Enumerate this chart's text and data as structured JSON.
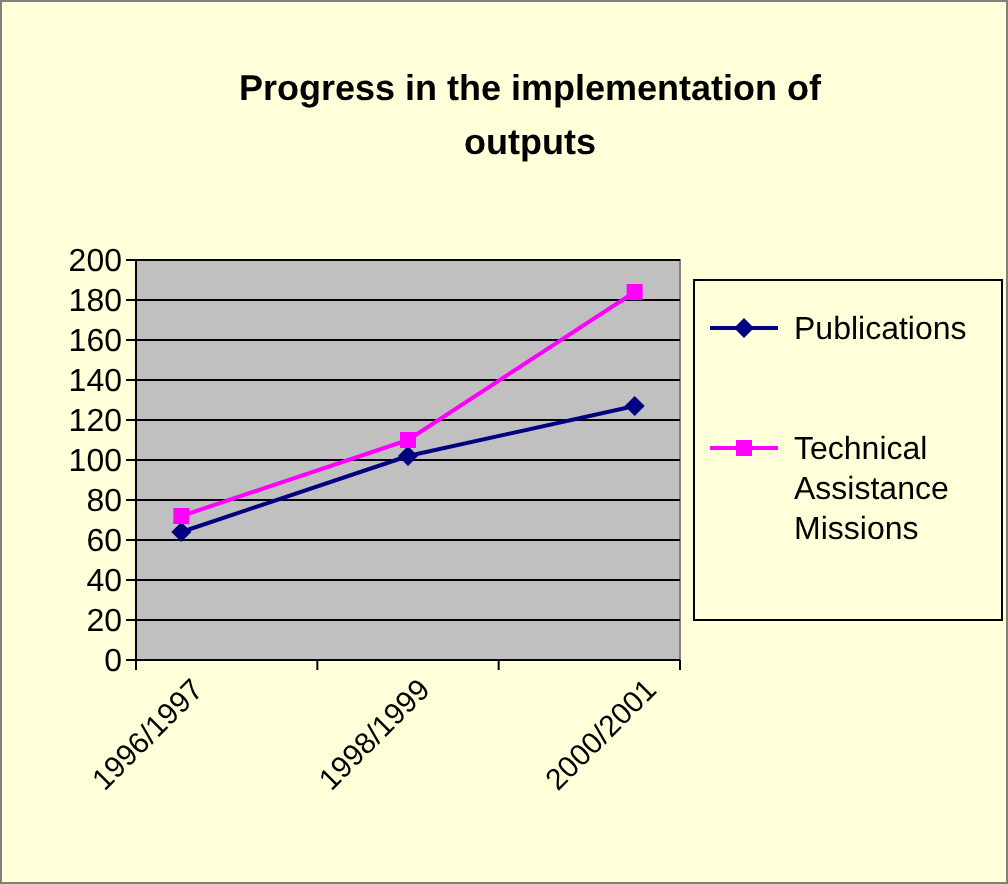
{
  "chart_data": {
    "type": "line",
    "title": "Progress in the implementation of outputs",
    "categories": [
      "1996/1997",
      "1998/1999",
      "2000/2001"
    ],
    "series": [
      {
        "name": "Publications",
        "color": "#000080",
        "marker": "diamond",
        "values": [
          64,
          102,
          127
        ]
      },
      {
        "name": "Technical Assistance Missions",
        "color": "#ff00ff",
        "marker": "square",
        "values": [
          72,
          110,
          184
        ]
      }
    ],
    "ylim": [
      0,
      200
    ],
    "yticks": [
      0,
      20,
      40,
      60,
      80,
      100,
      120,
      140,
      160,
      180,
      200
    ],
    "grid": "y",
    "legend": "right"
  }
}
